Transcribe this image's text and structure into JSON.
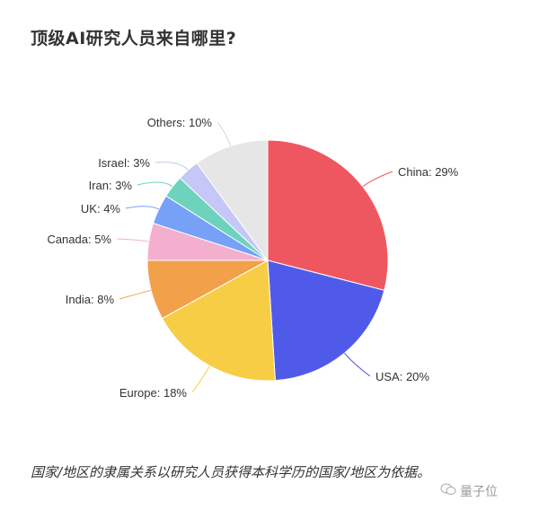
{
  "title": "顶级AI研究人员来自哪里?",
  "caption": "国家/地区的隶属关系以研究人员获得本科学历的国家/地区为依据。",
  "watermark": "量子位",
  "chart_data": {
    "type": "pie",
    "title": "顶级AI研究人员来自哪里?",
    "start": "top",
    "direction": "clockwise",
    "unit": "%",
    "slices": [
      {
        "label": "China",
        "value": 29,
        "color": "#ef5760"
      },
      {
        "label": "USA",
        "value": 20,
        "color": "#4f5be8"
      },
      {
        "label": "Europe",
        "value": 18,
        "color": "#f7cd45"
      },
      {
        "label": "India",
        "value": 8,
        "color": "#f2a04a"
      },
      {
        "label": "Canada",
        "value": 5,
        "color": "#f4afcf"
      },
      {
        "label": "UK",
        "value": 4,
        "color": "#77a0f7"
      },
      {
        "label": "Iran",
        "value": 3,
        "color": "#6ed3bd"
      },
      {
        "label": "Israel",
        "value": 3,
        "color": "#c5c7f7"
      },
      {
        "label": "Others",
        "value": 10,
        "color": "#e6e6e6"
      }
    ]
  }
}
